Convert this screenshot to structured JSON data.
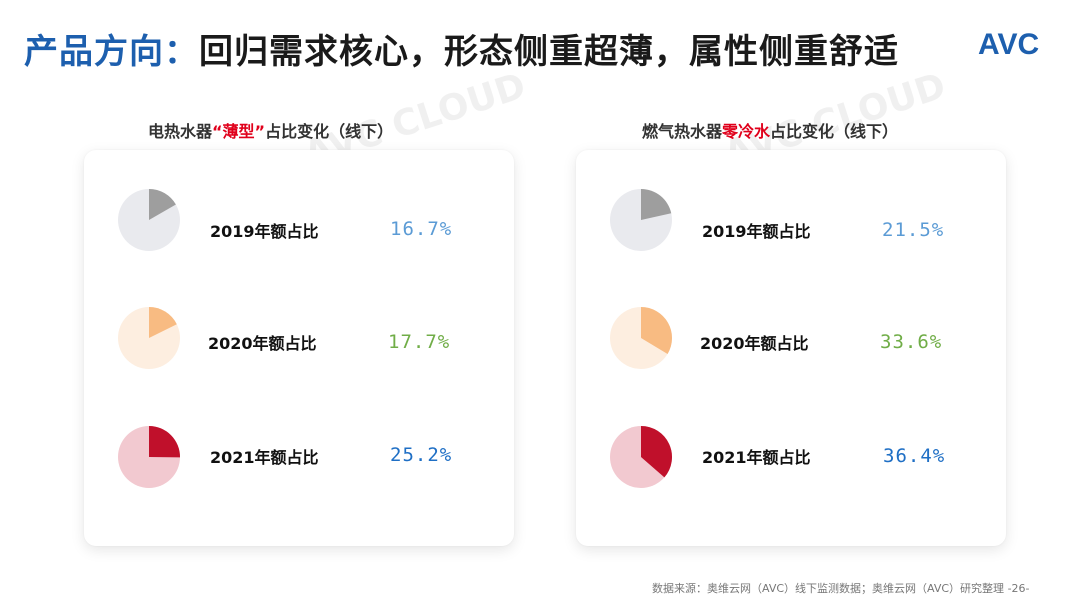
{
  "header": {
    "title_prefix": "产品方向：",
    "title_main": "回归需求核心，形态侧重超薄，属性侧重舒适",
    "logo_text": "AVC"
  },
  "colors": {
    "title_blue": "#1d5fae",
    "red": "#e0001b",
    "gray_slice": "#9e9e9e",
    "gray_base": "#e9eaee",
    "gray_text": "#5b9bd5",
    "orange_slice": "#f8bb82",
    "orange_base": "#fdeee0",
    "orange_text": "#70ad47",
    "crimson_slice": "#c0102b",
    "crimson_base": "#f2c9d0",
    "crimson_text": "#1f6fc5"
  },
  "chart_data": [
    {
      "type": "pie",
      "title_parts": [
        "电热水器",
        "“薄型”",
        "占比变化（线下）"
      ],
      "rows": [
        {
          "label": "2019年额占比",
          "value": 16.7,
          "display": "16.7%",
          "theme": "gray"
        },
        {
          "label": "2020年额占比",
          "value": 17.7,
          "display": "17.7%",
          "theme": "orange"
        },
        {
          "label": "2021年额占比",
          "value": 25.2,
          "display": "25.2%",
          "theme": "crimson"
        }
      ]
    },
    {
      "type": "pie",
      "title_parts": [
        "燃气热水器",
        "零冷水",
        "占比变化（线下）"
      ],
      "rows": [
        {
          "label": "2019年额占比",
          "value": 21.5,
          "display": "21.5%",
          "theme": "gray"
        },
        {
          "label": "2020年额占比",
          "value": 33.6,
          "display": "33.6%",
          "theme": "orange"
        },
        {
          "label": "2021年额占比",
          "value": 36.4,
          "display": "36.4%",
          "theme": "crimson"
        }
      ]
    }
  ],
  "footer": {
    "source": "数据来源：奥维云网（AVC）线下监测数据；奥维云网（AVC）研究整理",
    "page": "-26-"
  }
}
